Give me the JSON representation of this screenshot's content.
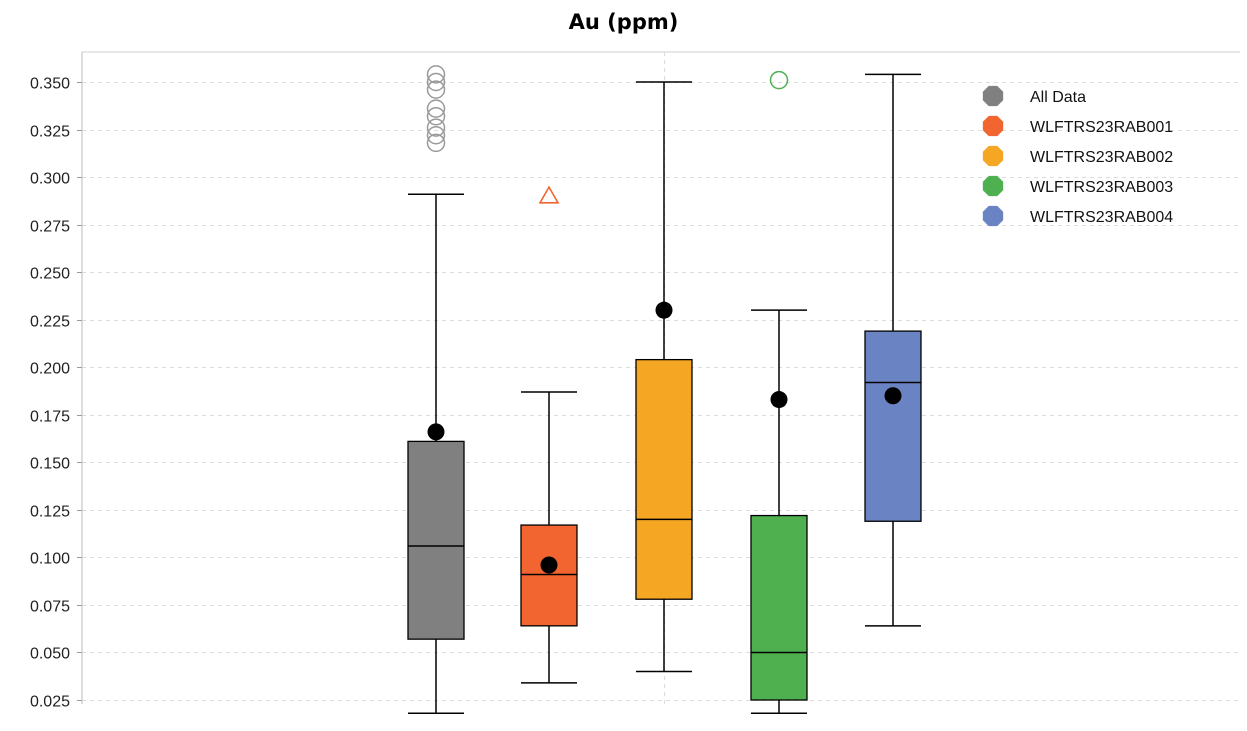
{
  "chart_data": {
    "type": "box",
    "title": "Au (ppm)",
    "xlabel": "",
    "ylabel": "",
    "ylim": [
      0.011,
      0.365
    ],
    "y_ticks": [
      0.025,
      0.05,
      0.075,
      0.1,
      0.125,
      0.15,
      0.175,
      0.2,
      0.225,
      0.25,
      0.275,
      0.3,
      0.325,
      0.35
    ],
    "y_tick_labels": [
      "0.025",
      "0.050",
      "0.075",
      "0.100",
      "0.125",
      "0.150",
      "0.175",
      "0.200",
      "0.225",
      "0.250",
      "0.275",
      "0.300",
      "0.325",
      "0.350"
    ],
    "grid": true,
    "legend_position": "top-right",
    "series": [
      {
        "name": "All Data",
        "color": "#808080",
        "whisker_low": 0.018,
        "q1": 0.057,
        "median": 0.106,
        "q3": 0.161,
        "whisker_high": 0.291,
        "mean": 0.166,
        "outliers": [
          0.318,
          0.322,
          0.326,
          0.332,
          0.336,
          0.346,
          0.35,
          0.354
        ],
        "outlier_marker": "circle"
      },
      {
        "name": "WLFTRS23RAB001",
        "color": "#f26430",
        "whisker_low": 0.034,
        "q1": 0.064,
        "median": 0.091,
        "q3": 0.117,
        "whisker_high": 0.187,
        "mean": 0.096,
        "outliers": [
          0.29
        ],
        "outlier_marker": "triangle"
      },
      {
        "name": "WLFTRS23RAB002",
        "color": "#f5a623",
        "whisker_low": 0.04,
        "q1": 0.078,
        "median": 0.12,
        "q3": 0.204,
        "whisker_high": 0.35,
        "mean": 0.23,
        "outliers": [],
        "outlier_marker": "circle"
      },
      {
        "name": "WLFTRS23RAB003",
        "color": "#4fb04f",
        "whisker_low": 0.018,
        "q1": 0.025,
        "median": 0.05,
        "q3": 0.122,
        "whisker_high": 0.23,
        "mean": 0.183,
        "outliers": [
          0.351
        ],
        "outlier_marker": "circle"
      },
      {
        "name": "WLFTRS23RAB004",
        "color": "#6a84c3",
        "whisker_low": 0.064,
        "q1": 0.119,
        "median": 0.192,
        "q3": 0.219,
        "whisker_high": 0.354,
        "mean": 0.185,
        "outliers": [],
        "outlier_marker": "circle"
      }
    ]
  }
}
